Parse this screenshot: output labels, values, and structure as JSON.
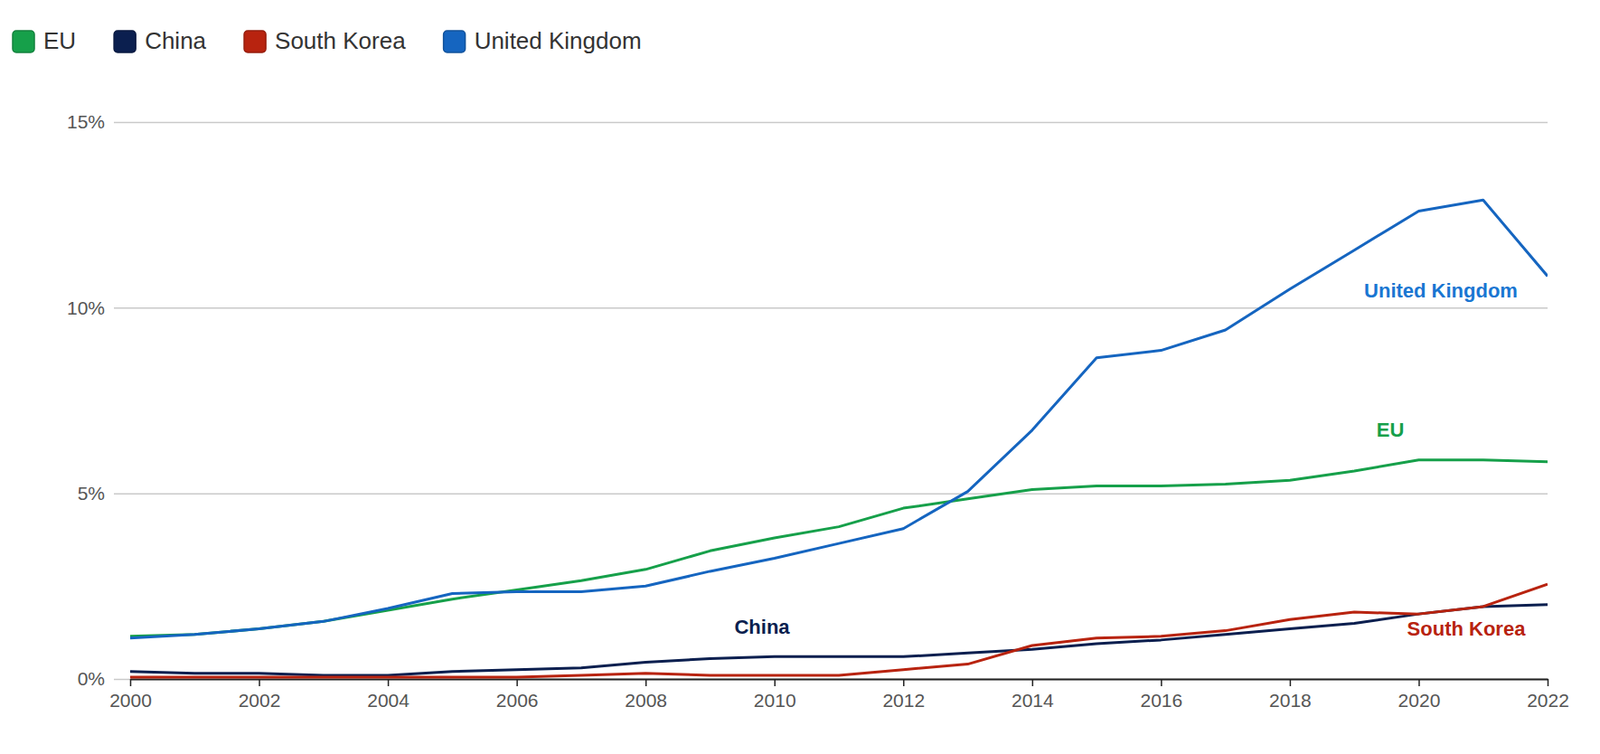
{
  "chart_data": {
    "type": "line",
    "x": [
      2000,
      2001,
      2002,
      2003,
      2004,
      2005,
      2006,
      2007,
      2008,
      2009,
      2010,
      2011,
      2012,
      2013,
      2014,
      2015,
      2016,
      2017,
      2018,
      2019,
      2020,
      2021,
      2022
    ],
    "series": [
      {
        "name": "EU",
        "color": "#16a04a",
        "values": [
          1.15,
          1.2,
          1.35,
          1.55,
          1.85,
          2.15,
          2.4,
          2.65,
          2.95,
          3.45,
          3.8,
          4.1,
          4.6,
          4.85,
          5.1,
          5.2,
          5.2,
          5.25,
          5.35,
          5.6,
          5.9,
          5.9,
          5.85
        ]
      },
      {
        "name": "China",
        "color": "#0b1f4f",
        "values": [
          0.2,
          0.15,
          0.15,
          0.1,
          0.1,
          0.2,
          0.25,
          0.3,
          0.45,
          0.55,
          0.6,
          0.6,
          0.6,
          0.7,
          0.8,
          0.95,
          1.05,
          1.2,
          1.35,
          1.5,
          1.75,
          1.95,
          2.0
        ]
      },
      {
        "name": "South Korea",
        "color": "#b8230f",
        "values": [
          0.05,
          0.05,
          0.05,
          0.05,
          0.05,
          0.05,
          0.05,
          0.1,
          0.15,
          0.1,
          0.1,
          0.1,
          0.25,
          0.4,
          0.9,
          1.1,
          1.15,
          1.3,
          1.6,
          1.8,
          1.75,
          1.95,
          2.55
        ]
      },
      {
        "name": "United Kingdom",
        "color": "#1565c0",
        "values": [
          1.1,
          1.2,
          1.35,
          1.55,
          1.9,
          2.3,
          2.35,
          2.35,
          2.5,
          2.9,
          3.25,
          3.65,
          4.05,
          5.05,
          6.7,
          8.65,
          8.85,
          9.4,
          10.5,
          11.55,
          12.6,
          12.9,
          10.85
        ]
      }
    ],
    "xlim": [
      2000,
      2022
    ],
    "xticks": [
      2000,
      2002,
      2004,
      2006,
      2008,
      2010,
      2012,
      2014,
      2016,
      2018,
      2020,
      2022
    ],
    "ylim": [
      0,
      15
    ],
    "yticks": [
      {
        "value": 0,
        "label": "0%"
      },
      {
        "value": 5,
        "label": "5%"
      },
      {
        "value": 10,
        "label": "10%"
      },
      {
        "value": 15,
        "label": "15%"
      }
    ],
    "grid": true,
    "legend": "top"
  }
}
